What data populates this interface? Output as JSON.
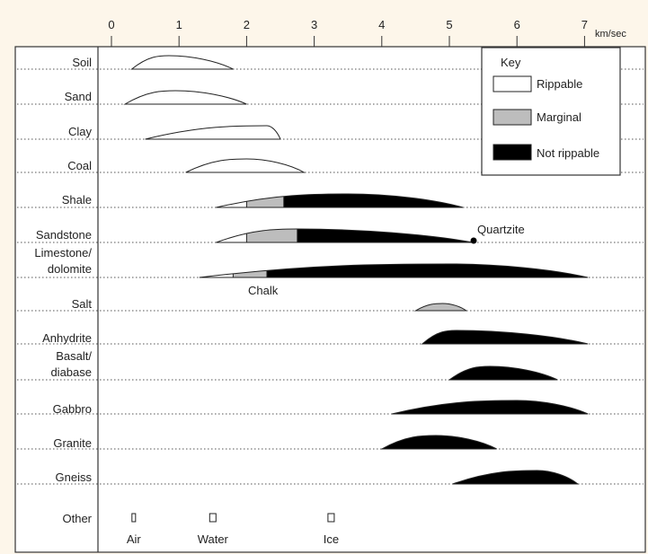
{
  "unit_label": "km/sec",
  "ticks": [
    "0",
    "1",
    "2",
    "3",
    "4",
    "5",
    "6",
    "7"
  ],
  "rows": [
    {
      "lines": [
        "Soil"
      ]
    },
    {
      "lines": [
        "Sand"
      ]
    },
    {
      "lines": [
        "Clay"
      ]
    },
    {
      "lines": [
        "Coal"
      ]
    },
    {
      "lines": [
        "Shale"
      ]
    },
    {
      "lines": [
        "Sandstone"
      ]
    },
    {
      "lines": [
        "Limestone/",
        "dolomite"
      ]
    },
    {
      "lines": [
        "Salt"
      ]
    },
    {
      "lines": [
        "Anhydrite"
      ]
    },
    {
      "lines": [
        "Basalt/",
        "diabase"
      ]
    },
    {
      "lines": [
        "Gabbro"
      ]
    },
    {
      "lines": [
        "Granite"
      ]
    },
    {
      "lines": [
        "Gneiss"
      ]
    },
    {
      "lines": [
        "Other"
      ]
    }
  ],
  "key": {
    "title": "Key",
    "items": [
      {
        "label": "Rippable",
        "color": "#ffffff"
      },
      {
        "label": "Marginal",
        "color": "#bdbdbd"
      },
      {
        "label": "Not rippable",
        "color": "#000000"
      }
    ]
  },
  "annotations": {
    "quartzite": "Quartzite",
    "chalk": "Chalk"
  },
  "other_markers": [
    {
      "label": "Air",
      "velocity": 0.33
    },
    {
      "label": "Water",
      "velocity": 1.5
    },
    {
      "label": "Ice",
      "velocity": 3.25
    }
  ],
  "ranges": [
    {
      "row": "Soil",
      "min": 0.3,
      "max": 1.8,
      "peak": 0.85,
      "segments": [
        {
          "to": 1.8,
          "class": "Rippable"
        }
      ]
    },
    {
      "row": "Sand",
      "min": 0.2,
      "max": 2.0,
      "peak": 0.95,
      "segments": [
        {
          "to": 2.0,
          "class": "Rippable"
        }
      ]
    },
    {
      "row": "Clay",
      "min": 0.5,
      "max": 2.5,
      "peak": 2.3,
      "segments": [
        {
          "to": 2.5,
          "class": "Rippable"
        }
      ]
    },
    {
      "row": "Coal",
      "min": 1.1,
      "max": 2.85,
      "peak": 2.0,
      "segments": [
        {
          "to": 2.85,
          "class": "Rippable"
        }
      ]
    },
    {
      "row": "Shale",
      "min": 1.55,
      "max": 5.2,
      "peak": 3.5,
      "segments": [
        {
          "to": 2.0,
          "class": "Rippable"
        },
        {
          "to": 2.55,
          "class": "Marginal"
        },
        {
          "to": 5.2,
          "class": "Not rippable"
        }
      ]
    },
    {
      "row": "Sandstone",
      "min": 1.55,
      "max": 5.35,
      "peak": 2.75,
      "segments": [
        {
          "to": 2.0,
          "class": "Rippable"
        },
        {
          "to": 2.75,
          "class": "Marginal"
        },
        {
          "to": 5.35,
          "class": "Not rippable"
        }
      ]
    },
    {
      "row": "Limestone/dolomite",
      "min": 1.3,
      "max": 7.05,
      "peak": 5.0,
      "segments": [
        {
          "to": 1.8,
          "class": "Rippable"
        },
        {
          "to": 2.3,
          "class": "Marginal"
        },
        {
          "to": 7.05,
          "class": "Not rippable"
        }
      ]
    },
    {
      "row": "Salt",
      "min": 4.5,
      "max": 5.25,
      "peak": 4.9,
      "segments": [
        {
          "to": 5.25,
          "class": "Marginal"
        }
      ]
    },
    {
      "row": "Anhydrite",
      "min": 4.6,
      "max": 7.05,
      "peak": 5.1,
      "segments": [
        {
          "to": 7.05,
          "class": "Not rippable"
        }
      ]
    },
    {
      "row": "Basalt/diabase",
      "min": 5.0,
      "max": 6.6,
      "peak": 5.6,
      "segments": [
        {
          "to": 6.6,
          "class": "Not rippable"
        }
      ]
    },
    {
      "row": "Gabbro",
      "min": 4.15,
      "max": 7.05,
      "peak": 6.0,
      "segments": [
        {
          "to": 7.05,
          "class": "Not rippable"
        }
      ]
    },
    {
      "row": "Granite",
      "min": 4.0,
      "max": 5.7,
      "peak": 4.8,
      "segments": [
        {
          "to": 5.7,
          "class": "Not rippable"
        }
      ]
    },
    {
      "row": "Gneiss",
      "min": 5.05,
      "max": 6.9,
      "peak": 6.3,
      "segments": [
        {
          "to": 6.9,
          "class": "Not rippable"
        }
      ]
    }
  ]
}
